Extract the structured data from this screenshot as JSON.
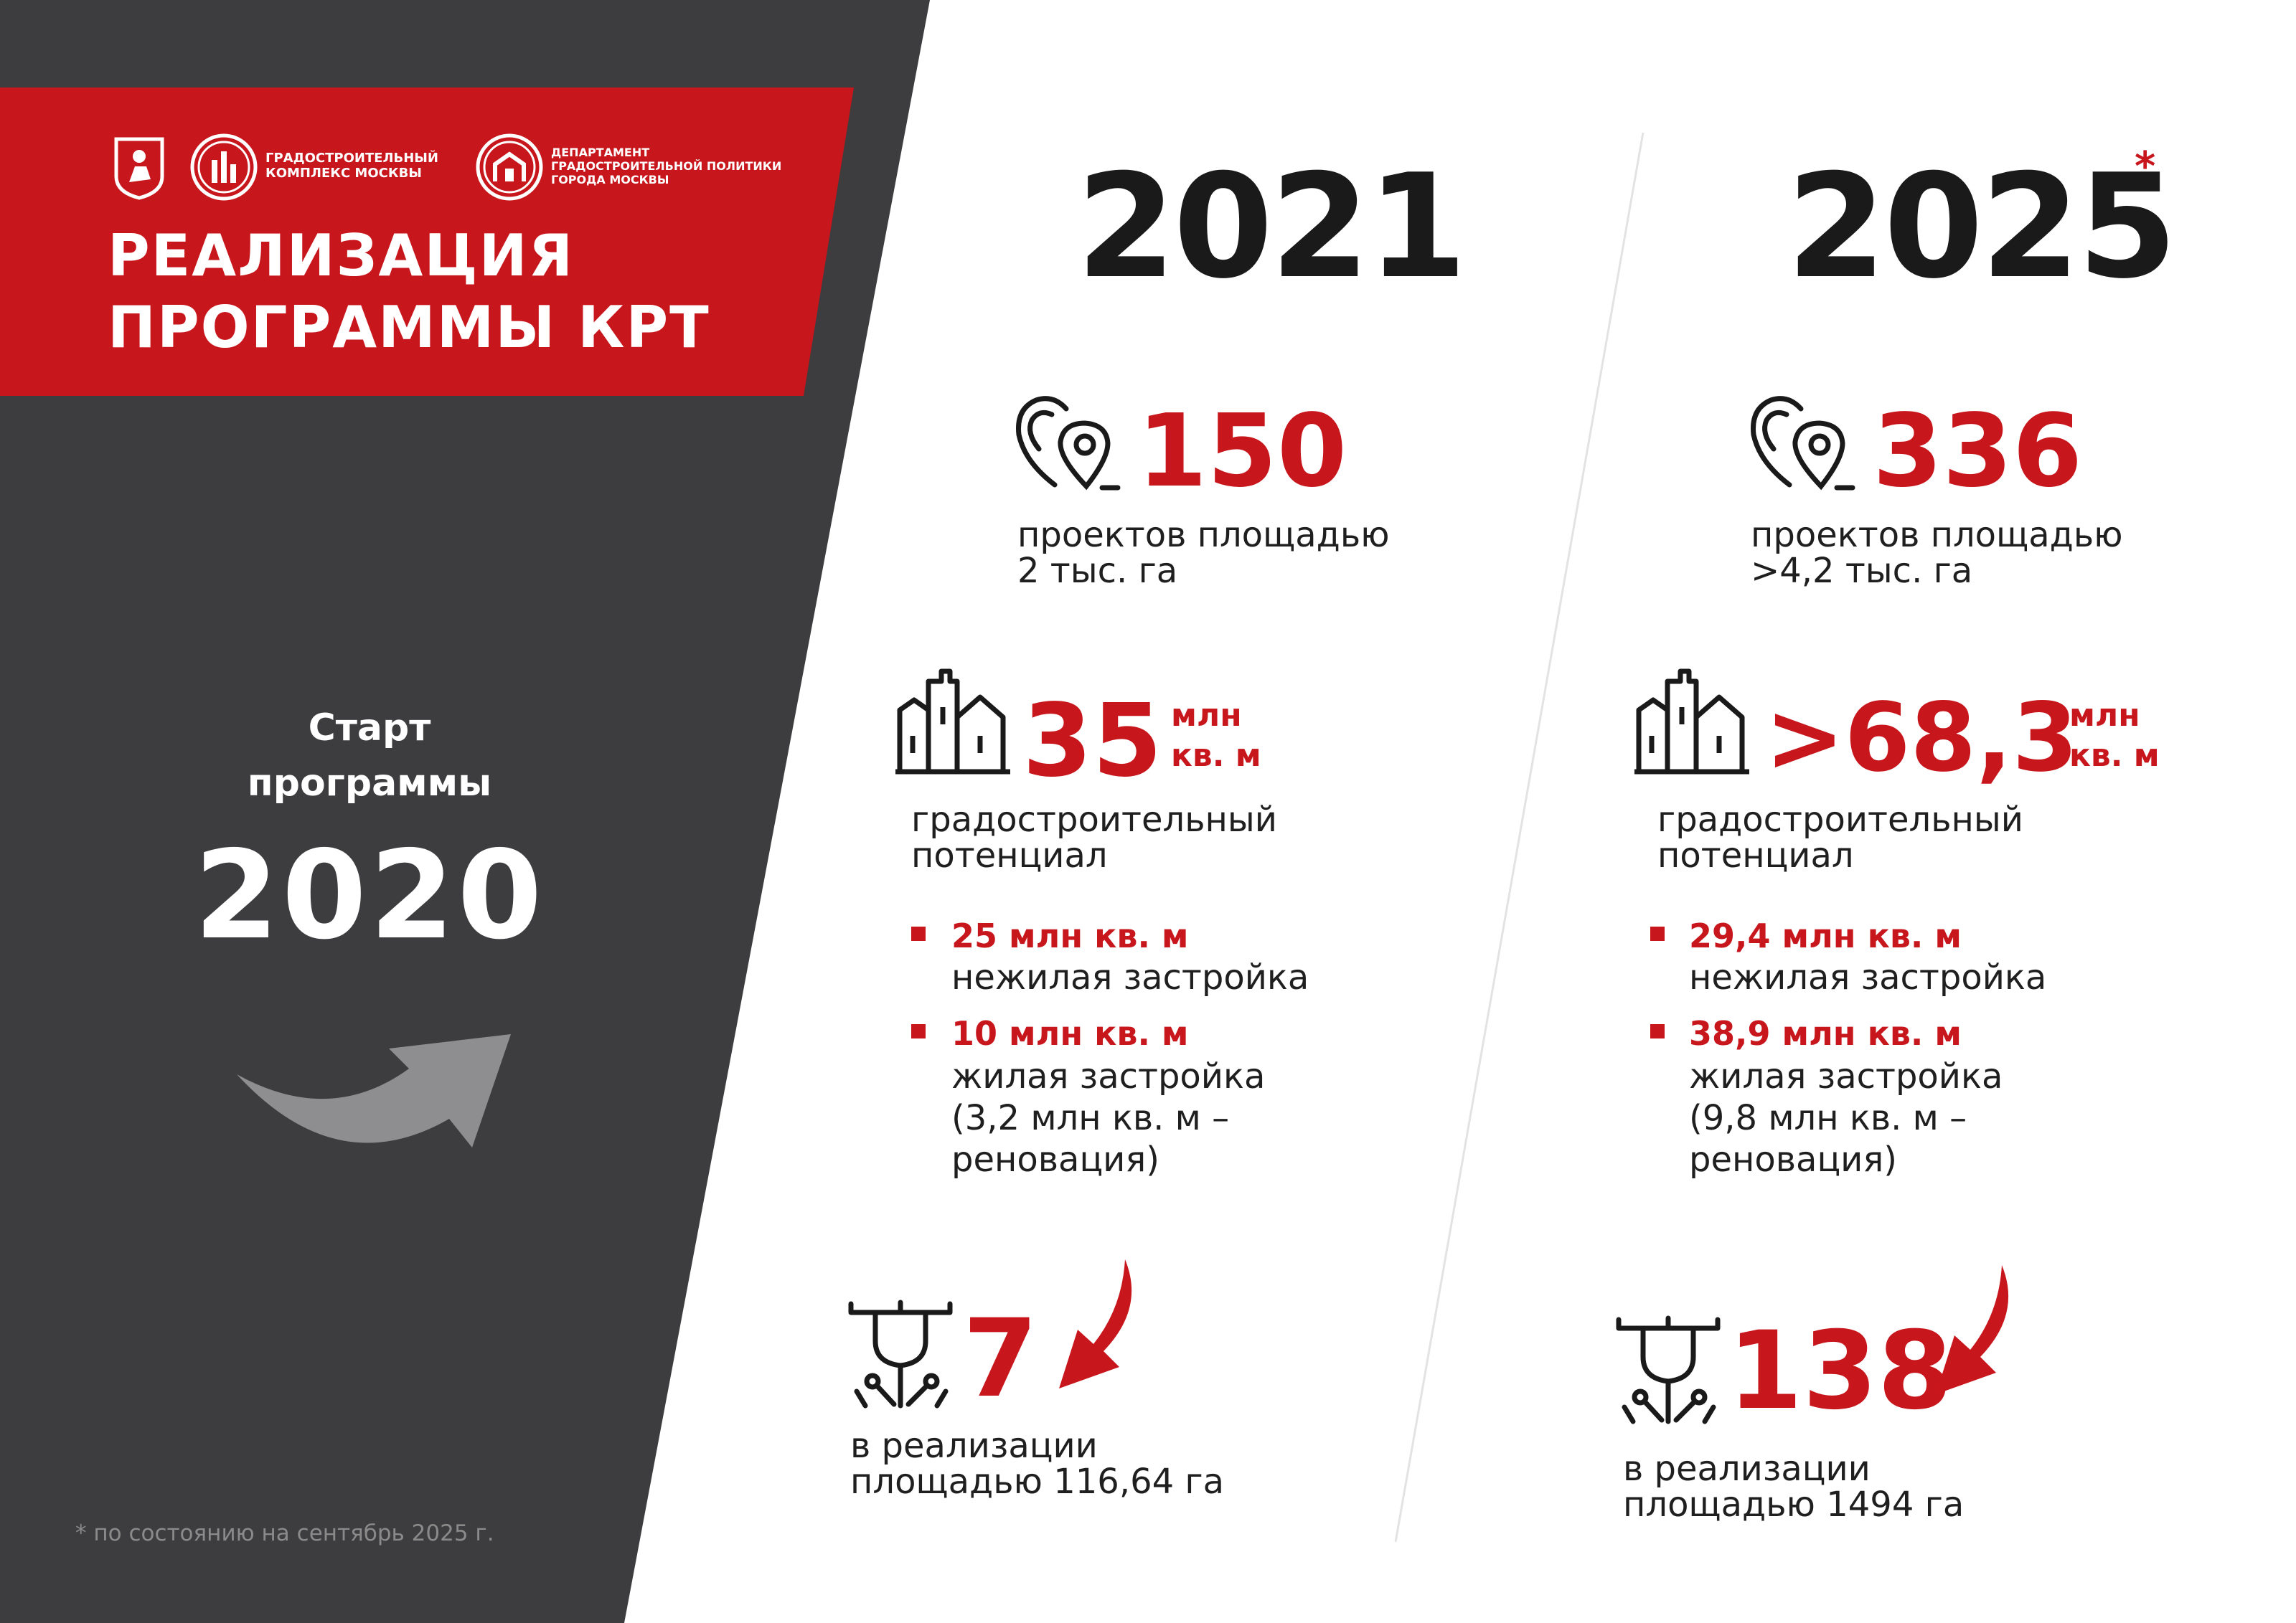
{
  "header": {
    "title_line1": "РЕАЛИЗАЦИЯ",
    "title_line2": "ПРОГРАММЫ КРТ",
    "logo_complex_line1": "ГРАДОСТРОИТЕЛЬНЫЙ",
    "logo_complex_line2": "КОМПЛЕКС МОСКВЫ",
    "logo_dept_line1": "ДЕПАРТАМЕНТ",
    "logo_dept_line2": "ГРАДОСТРОИТЕЛЬНОЙ ПОЛИТИКИ",
    "logo_dept_line3": "ГОРОДА МОСКВЫ"
  },
  "start": {
    "line1": "Старт",
    "line2": "программы",
    "year": "2020"
  },
  "footnote": "* по состоянию на сентябрь 2025 г.",
  "col2021": {
    "year": "2021",
    "projects_value": "150",
    "projects_caption_line1": "проектов площадью",
    "projects_caption_line2": "2 тыс. га",
    "potential_value": "35",
    "potential_unit_line1": "млн",
    "potential_unit_line2": "кв. м",
    "potential_caption_line1": "градостроительный",
    "potential_caption_line2": "потенциал",
    "bullet1_head": "25 млн кв. м",
    "bullet1_text": "нежилая застройка",
    "bullet2_head": "10 млн кв. м",
    "bullet2_text_line1": "жилая застройка",
    "bullet2_text_line2": "(3,2 млн кв. м –",
    "bullet2_text_line3": "реновация)",
    "impl_value": "7",
    "impl_caption_line1": "в реализации",
    "impl_caption_line2": "площадью 116,64 га"
  },
  "col2025": {
    "year": "2025",
    "year_mark": "*",
    "projects_value": "336",
    "projects_caption_line1": "проектов площадью",
    "projects_caption_line2": ">4,2 тыс. га",
    "potential_value": ">68,3",
    "potential_unit_line1": "млн",
    "potential_unit_line2": "кв. м",
    "potential_caption_line1": "градостроительный",
    "potential_caption_line2": "потенциал",
    "bullet1_head": "29,4 млн кв. м",
    "bullet1_text": "нежилая застройка",
    "bullet2_head": "38,9 млн кв. м",
    "bullet2_text_line1": "жилая застройка",
    "bullet2_text_line2": "(9,8 млн кв. м –",
    "bullet2_text_line3": "реновация)",
    "impl_value": "138",
    "impl_caption_line1": "в реализации",
    "impl_caption_line2": "площадью 1494 га"
  },
  "colors": {
    "accent_red": "#c8161d",
    "dark_panel": "#3d3d3f",
    "text_dark": "#1a1a1a"
  }
}
